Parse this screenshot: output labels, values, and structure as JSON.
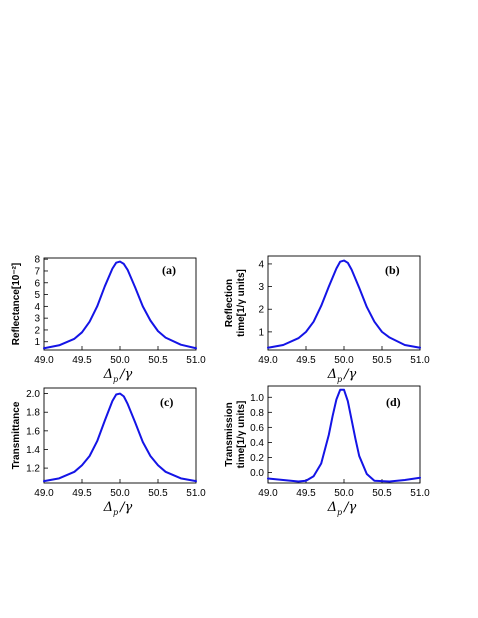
{
  "chart_data": [
    {
      "panel": "(a)",
      "type": "line",
      "ylabel_lines": [
        "Reflectance[10⁻²]"
      ],
      "xlabel": {
        "main": "Δ",
        "sub": "p",
        "tail": "/γ"
      },
      "xlim": [
        49.0,
        51.0
      ],
      "ylim": [
        0.3,
        8.1
      ],
      "xticks": [
        "49.0",
        "49.5",
        "50.0",
        "50.5",
        "51.0"
      ],
      "yticks": [
        "1",
        "2",
        "3",
        "4",
        "5",
        "6",
        "7",
        "8"
      ],
      "x": [
        49.0,
        49.2,
        49.4,
        49.5,
        49.6,
        49.7,
        49.8,
        49.9,
        49.95,
        50.0,
        50.05,
        50.1,
        50.2,
        50.3,
        50.4,
        50.5,
        50.6,
        50.8,
        51.0
      ],
      "y": [
        0.45,
        0.7,
        1.25,
        1.8,
        2.7,
        4.0,
        5.7,
        7.2,
        7.7,
        7.8,
        7.6,
        7.1,
        5.6,
        4.0,
        2.8,
        1.9,
        1.35,
        0.75,
        0.45
      ]
    },
    {
      "panel": "(b)",
      "type": "line",
      "ylabel_lines": [
        "Reflection",
        "time[1/γ units]"
      ],
      "xlabel": {
        "main": "Δ",
        "sub": "p",
        "tail": "/γ"
      },
      "xlim": [
        49.0,
        51.0
      ],
      "ylim": [
        0.2,
        4.35
      ],
      "xticks": [
        "49.0",
        "49.5",
        "50.0",
        "50.5",
        "51.0"
      ],
      "yticks": [
        "1",
        "2",
        "3",
        "4"
      ],
      "x": [
        49.0,
        49.2,
        49.4,
        49.5,
        49.6,
        49.7,
        49.8,
        49.9,
        49.95,
        50.0,
        50.05,
        50.1,
        50.2,
        50.3,
        50.4,
        50.5,
        50.6,
        50.8,
        51.0
      ],
      "y": [
        0.3,
        0.42,
        0.72,
        1.0,
        1.45,
        2.15,
        3.0,
        3.8,
        4.1,
        4.15,
        4.05,
        3.75,
        2.95,
        2.1,
        1.45,
        1.0,
        0.75,
        0.42,
        0.3
      ]
    },
    {
      "panel": "(c)",
      "type": "line",
      "ylabel_lines": [
        "Transmittance"
      ],
      "xlabel": {
        "main": "Δ",
        "sub": "p",
        "tail": "/γ"
      },
      "xlim": [
        49.0,
        51.0
      ],
      "ylim": [
        1.04,
        2.06
      ],
      "xticks": [
        "49.0",
        "49.5",
        "50.0",
        "50.5",
        "51.0"
      ],
      "yticks": [
        "1.2",
        "1.4",
        "1.6",
        "1.8",
        "2.0"
      ],
      "x": [
        49.0,
        49.2,
        49.4,
        49.5,
        49.6,
        49.7,
        49.8,
        49.9,
        49.95,
        50.0,
        50.05,
        50.1,
        50.2,
        50.3,
        50.4,
        50.5,
        50.6,
        50.8,
        51.0
      ],
      "y": [
        1.06,
        1.09,
        1.16,
        1.23,
        1.33,
        1.49,
        1.71,
        1.92,
        1.99,
        2.0,
        1.97,
        1.89,
        1.69,
        1.48,
        1.33,
        1.23,
        1.16,
        1.09,
        1.06
      ]
    },
    {
      "panel": "(d)",
      "type": "line",
      "ylabel_lines": [
        "Transmission",
        "time[1/γ units]"
      ],
      "xlabel": {
        "main": "Δ",
        "sub": "p",
        "tail": "/γ"
      },
      "xlim": [
        49.0,
        51.0
      ],
      "ylim": [
        -0.14,
        1.15
      ],
      "xticks": [
        "49.0",
        "49.5",
        "50.0",
        "50.5",
        "51.0"
      ],
      "yticks": [
        "0.0",
        "0.2",
        "0.4",
        "0.6",
        "0.8",
        "1.0"
      ],
      "x": [
        49.0,
        49.2,
        49.4,
        49.5,
        49.6,
        49.7,
        49.8,
        49.85,
        49.9,
        49.95,
        50.0,
        50.05,
        50.1,
        50.15,
        50.2,
        50.3,
        50.4,
        50.6,
        50.8,
        51.0
      ],
      "y": [
        -0.08,
        -0.1,
        -0.12,
        -0.11,
        -0.05,
        0.12,
        0.5,
        0.75,
        0.97,
        1.1,
        1.1,
        0.95,
        0.7,
        0.45,
        0.22,
        -0.02,
        -0.11,
        -0.12,
        -0.1,
        -0.07
      ]
    }
  ]
}
